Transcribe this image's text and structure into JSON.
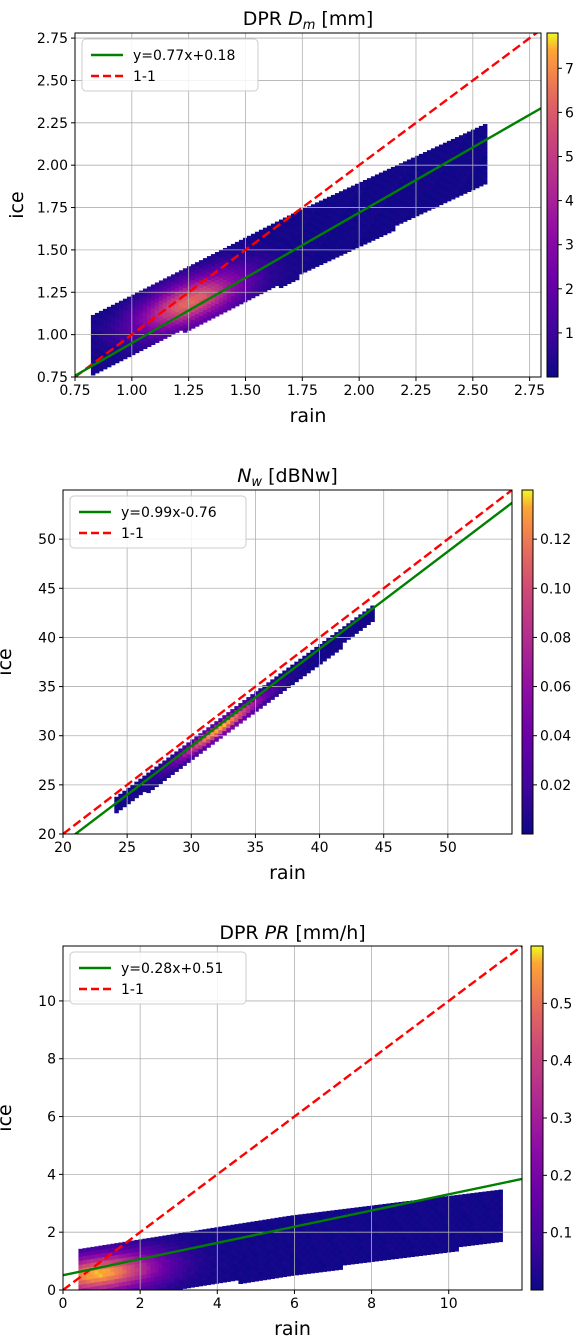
{
  "chart_data": [
    {
      "type": "heatmap",
      "title": "DPR D_m [mm]",
      "title_parts": [
        "DPR ",
        "D",
        "m",
        " [mm]"
      ],
      "xlabel": "rain",
      "ylabel": "ice",
      "xlim": [
        0.75,
        2.8
      ],
      "ylim": [
        0.75,
        2.78
      ],
      "xticks": [
        "0.75",
        "1.00",
        "1.25",
        "1.50",
        "1.75",
        "2.00",
        "2.25",
        "2.50",
        "2.75"
      ],
      "yticks": [
        "0.75",
        "1.00",
        "1.25",
        "1.50",
        "1.75",
        "2.00",
        "2.25",
        "2.50",
        "2.75"
      ],
      "grid": true,
      "legend": [
        {
          "label": "y=0.77x+0.18",
          "color": "#008000",
          "style": "solid"
        },
        {
          "label": "1-1",
          "color": "#ff0000",
          "style": "dashed"
        }
      ],
      "fit": {
        "slope": 0.77,
        "intercept": 0.18
      },
      "colorbar": {
        "min": 0,
        "max": 7.8,
        "ticks": [
          "1",
          "2",
          "3",
          "4",
          "5",
          "6",
          "7"
        ]
      },
      "density_axis": {
        "x": [
          0.82,
          2.55
        ],
        "y_at_xmin": 0.95,
        "y_at_xmax": 2.08,
        "halfwidth": 0.19,
        "peak": [
          1.3,
          1.12
        ]
      }
    },
    {
      "type": "heatmap",
      "title": "N_w [dBNw]",
      "title_parts": [
        "",
        "N",
        "w",
        " [dBNw]"
      ],
      "xlabel": "rain",
      "ylabel": "ice",
      "xlim": [
        20,
        55
      ],
      "ylim": [
        20,
        55
      ],
      "xticks": [
        "20",
        "25",
        "30",
        "35",
        "40",
        "45",
        "50"
      ],
      "yticks": [
        "20",
        "25",
        "30",
        "35",
        "40",
        "45",
        "50"
      ],
      "grid": true,
      "legend": [
        {
          "label": "y=0.99x-0.76",
          "color": "#008000",
          "style": "solid"
        },
        {
          "label": "1-1",
          "color": "#ff0000",
          "style": "dashed"
        }
      ],
      "fit": {
        "slope": 0.99,
        "intercept": -0.76
      },
      "colorbar": {
        "min": 0,
        "max": 0.14,
        "ticks": [
          "0.02",
          "0.04",
          "0.06",
          "0.08",
          "0.10",
          "0.12"
        ]
      },
      "density_axis": {
        "x": [
          24,
          44
        ],
        "y_at_xmin": 23.0,
        "y_at_xmax": 42.5,
        "halfwidth": 0.9,
        "peak": [
          32,
          31
        ]
      }
    },
    {
      "type": "heatmap",
      "title": "DPR PR [mm/h]",
      "title_parts": [
        "DPR ",
        "PR",
        "",
        " [mm/h]"
      ],
      "xlabel": "rain",
      "ylabel": "ice",
      "xlim": [
        0,
        11.9
      ],
      "ylim": [
        0,
        11.9
      ],
      "xticks": [
        "0",
        "2",
        "4",
        "6",
        "8",
        "10"
      ],
      "yticks": [
        "0",
        "2",
        "4",
        "6",
        "8",
        "10"
      ],
      "grid": true,
      "legend": [
        {
          "label": "y=0.28x+0.51",
          "color": "#008000",
          "style": "solid"
        },
        {
          "label": "1-1",
          "color": "#ff0000",
          "style": "dashed"
        }
      ],
      "fit": {
        "slope": 0.28,
        "intercept": 0.51
      },
      "colorbar": {
        "min": 0,
        "max": 0.6,
        "ticks": [
          "0.1",
          "0.2",
          "0.3",
          "0.4",
          "0.5"
        ]
      },
      "density_axis": {
        "x": [
          0.4,
          11.3
        ],
        "y_at_xmin": 0.55,
        "y_at_xmax": 2.6,
        "halfwidth": 1.0,
        "peak": [
          0.9,
          0.55
        ]
      }
    }
  ]
}
